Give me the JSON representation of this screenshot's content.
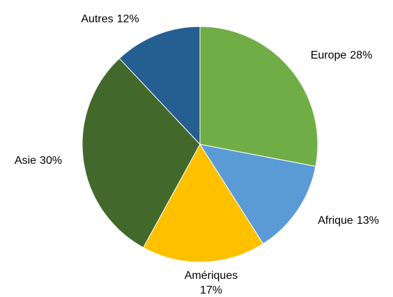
{
  "chart_data": {
    "type": "pie",
    "categories": [
      "Europe",
      "Afrique",
      "Amériques",
      "Asie",
      "Autres"
    ],
    "values": [
      28,
      13,
      17,
      30,
      12
    ],
    "value_labels": [
      "28%",
      "13%",
      "17%",
      "30%",
      "12%"
    ],
    "colors": [
      "#70ad47",
      "#5b9bd5",
      "#ffc000",
      "#43682b",
      "#255e91"
    ]
  }
}
